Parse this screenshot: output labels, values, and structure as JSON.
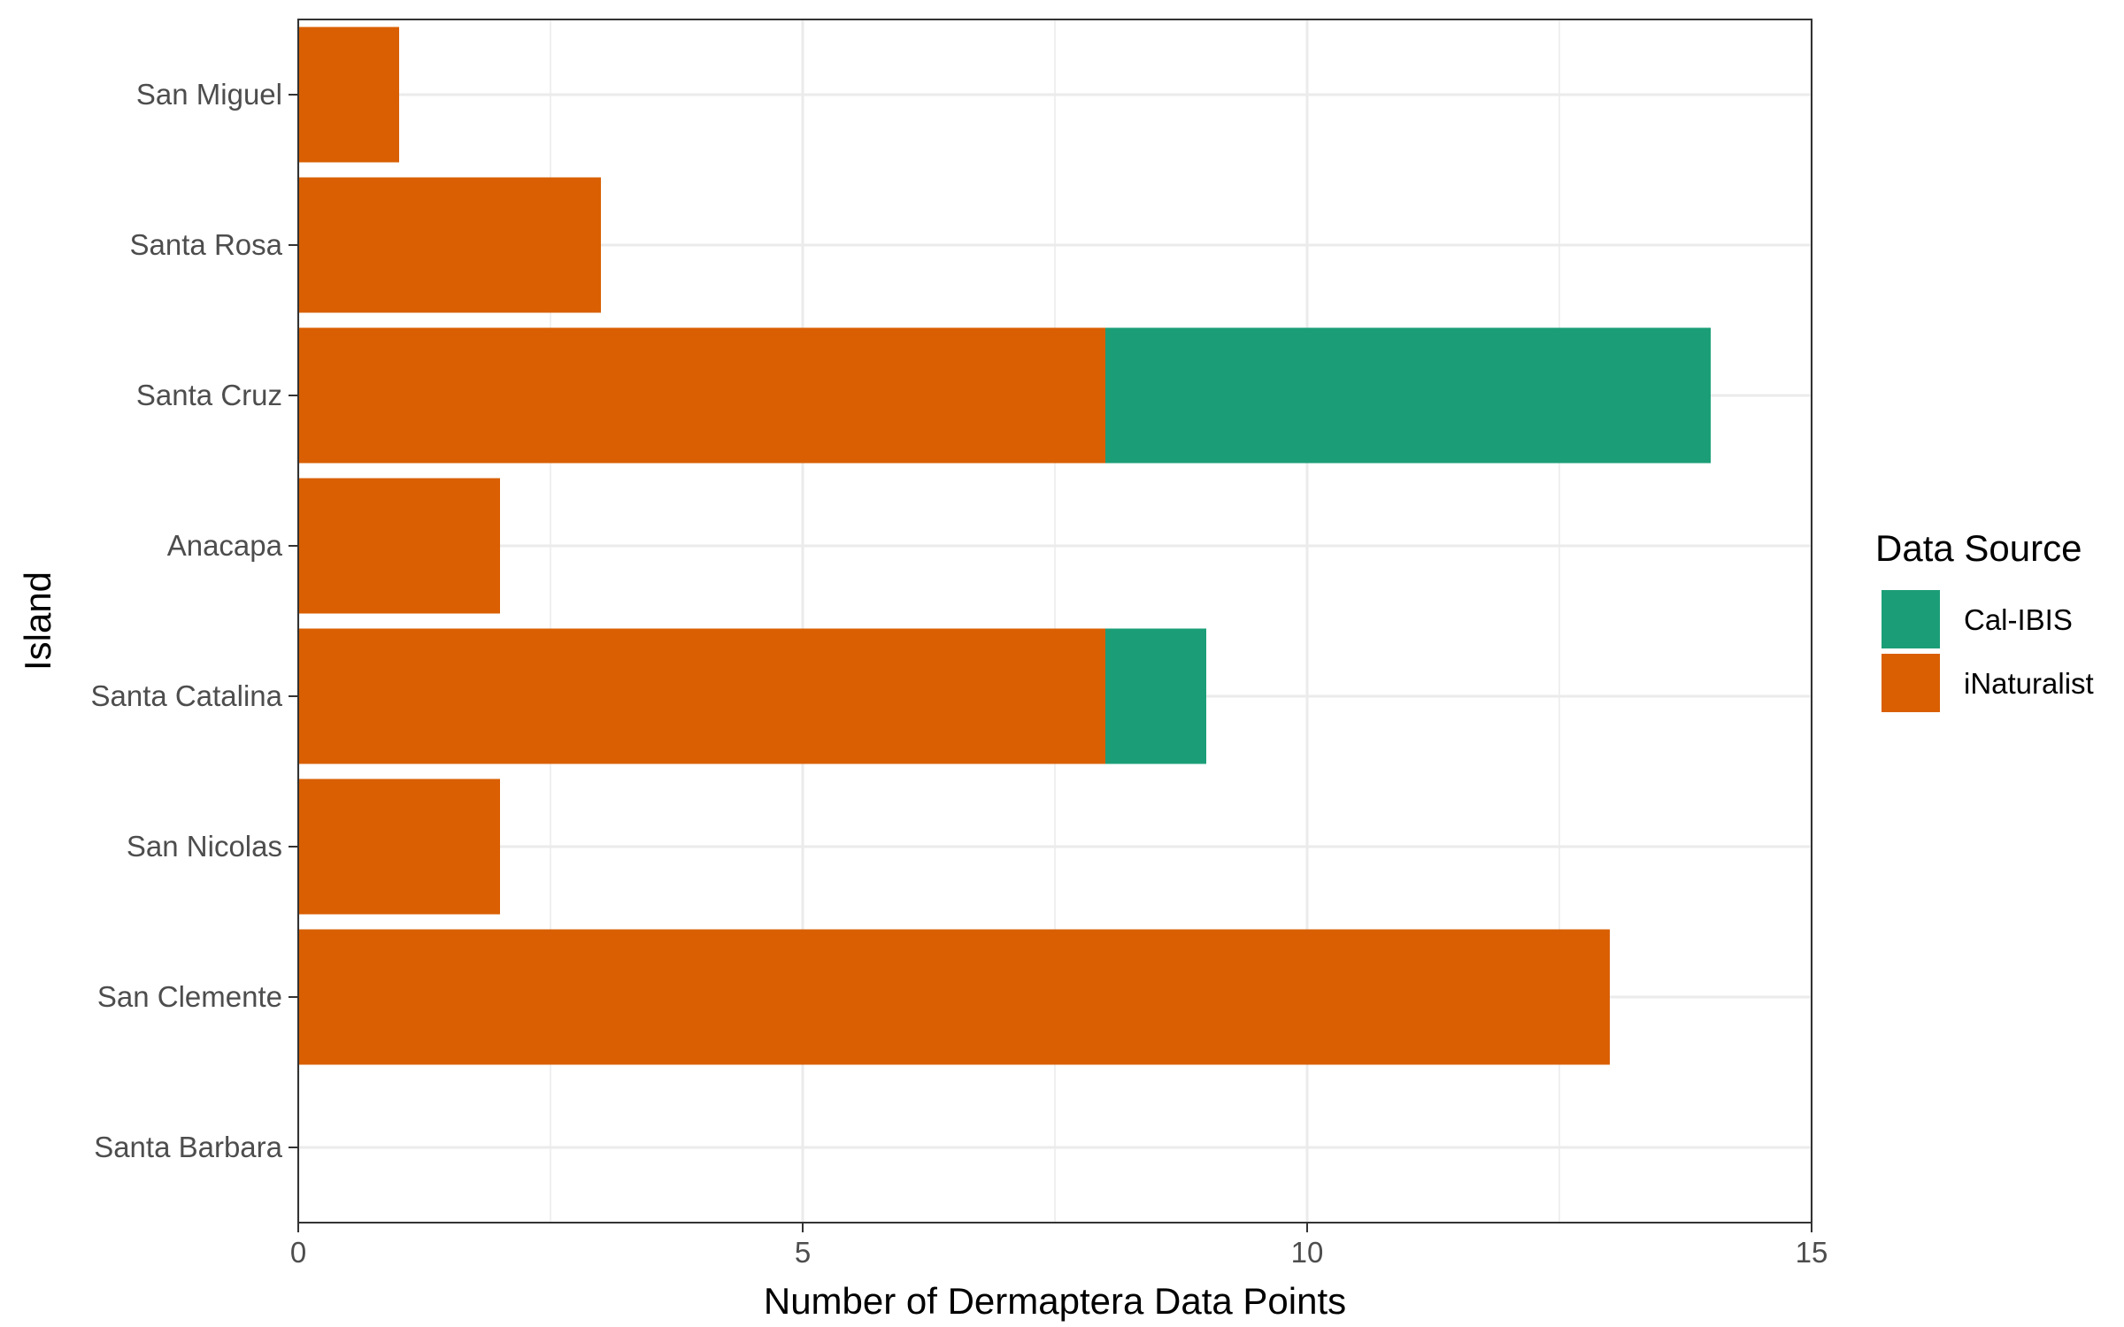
{
  "chart_data": {
    "type": "bar",
    "orientation": "horizontal",
    "stacked": true,
    "xlabel": "Number of Dermaptera Data Points",
    "ylabel": "Island",
    "xlim": [
      0,
      15
    ],
    "xticks": [
      0,
      5,
      10,
      15
    ],
    "grid": true,
    "legend": {
      "title": "Data Source",
      "placement": "right",
      "entries": [
        "Cal-IBIS",
        "iNaturalist"
      ]
    },
    "categories": [
      "San Miguel",
      "Santa Rosa",
      "Santa Cruz",
      "Anacapa",
      "Santa Catalina",
      "San Nicolas",
      "San Clemente",
      "Santa Barbara"
    ],
    "series": [
      {
        "name": "iNaturalist",
        "color": "#d95f02",
        "values": [
          1,
          3,
          8,
          2,
          8,
          2,
          13,
          0
        ]
      },
      {
        "name": "Cal-IBIS",
        "color": "#1b9e77",
        "values": [
          0,
          0,
          6,
          0,
          1,
          0,
          0,
          0
        ]
      }
    ]
  }
}
